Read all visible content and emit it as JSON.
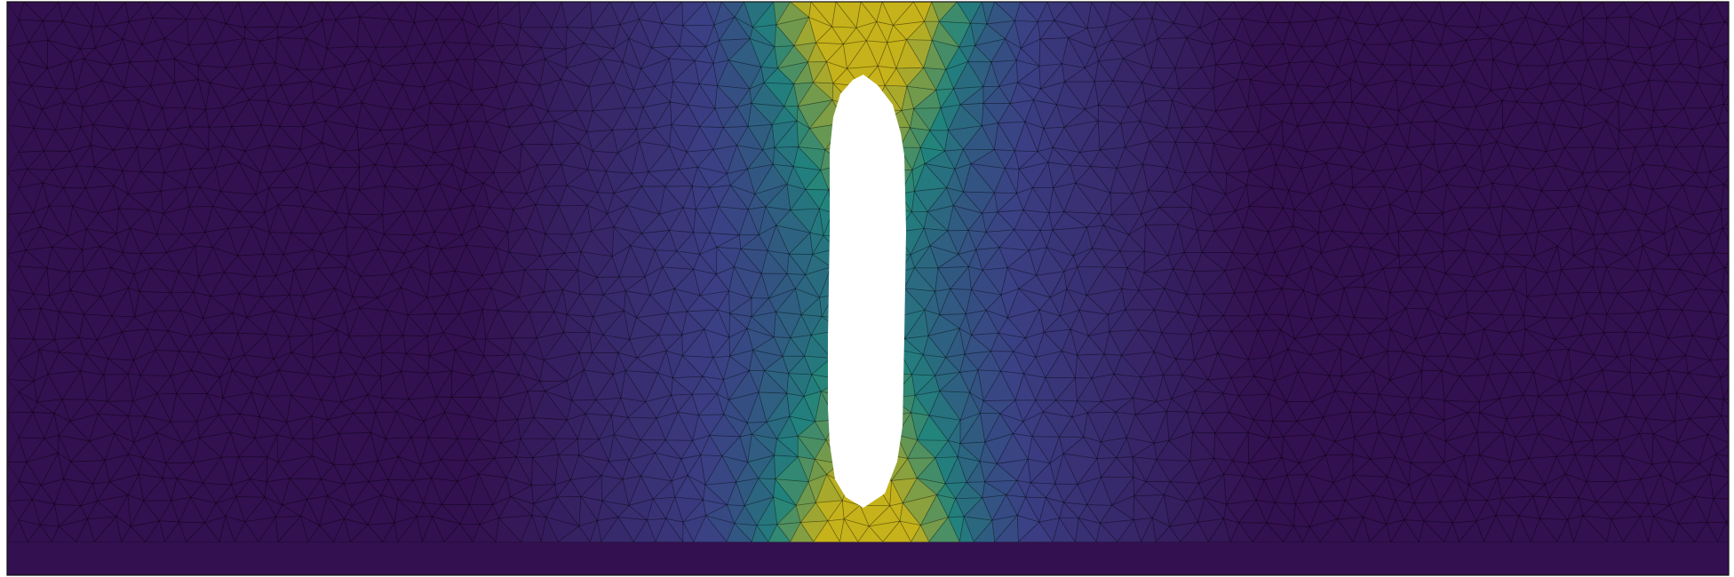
{
  "figure": {
    "description_kind": "finite-element stress field plot",
    "colormap": "viridis",
    "background_color": "#ffffff",
    "mesh_edge_color": "#000000",
    "hole_color": "#ffffff",
    "border_color": "#111111",
    "palette": {
      "low": "#33104f",
      "mid_low": "#3b3f84",
      "mid": "#21837d",
      "high": "#c6b21a"
    }
  }
}
